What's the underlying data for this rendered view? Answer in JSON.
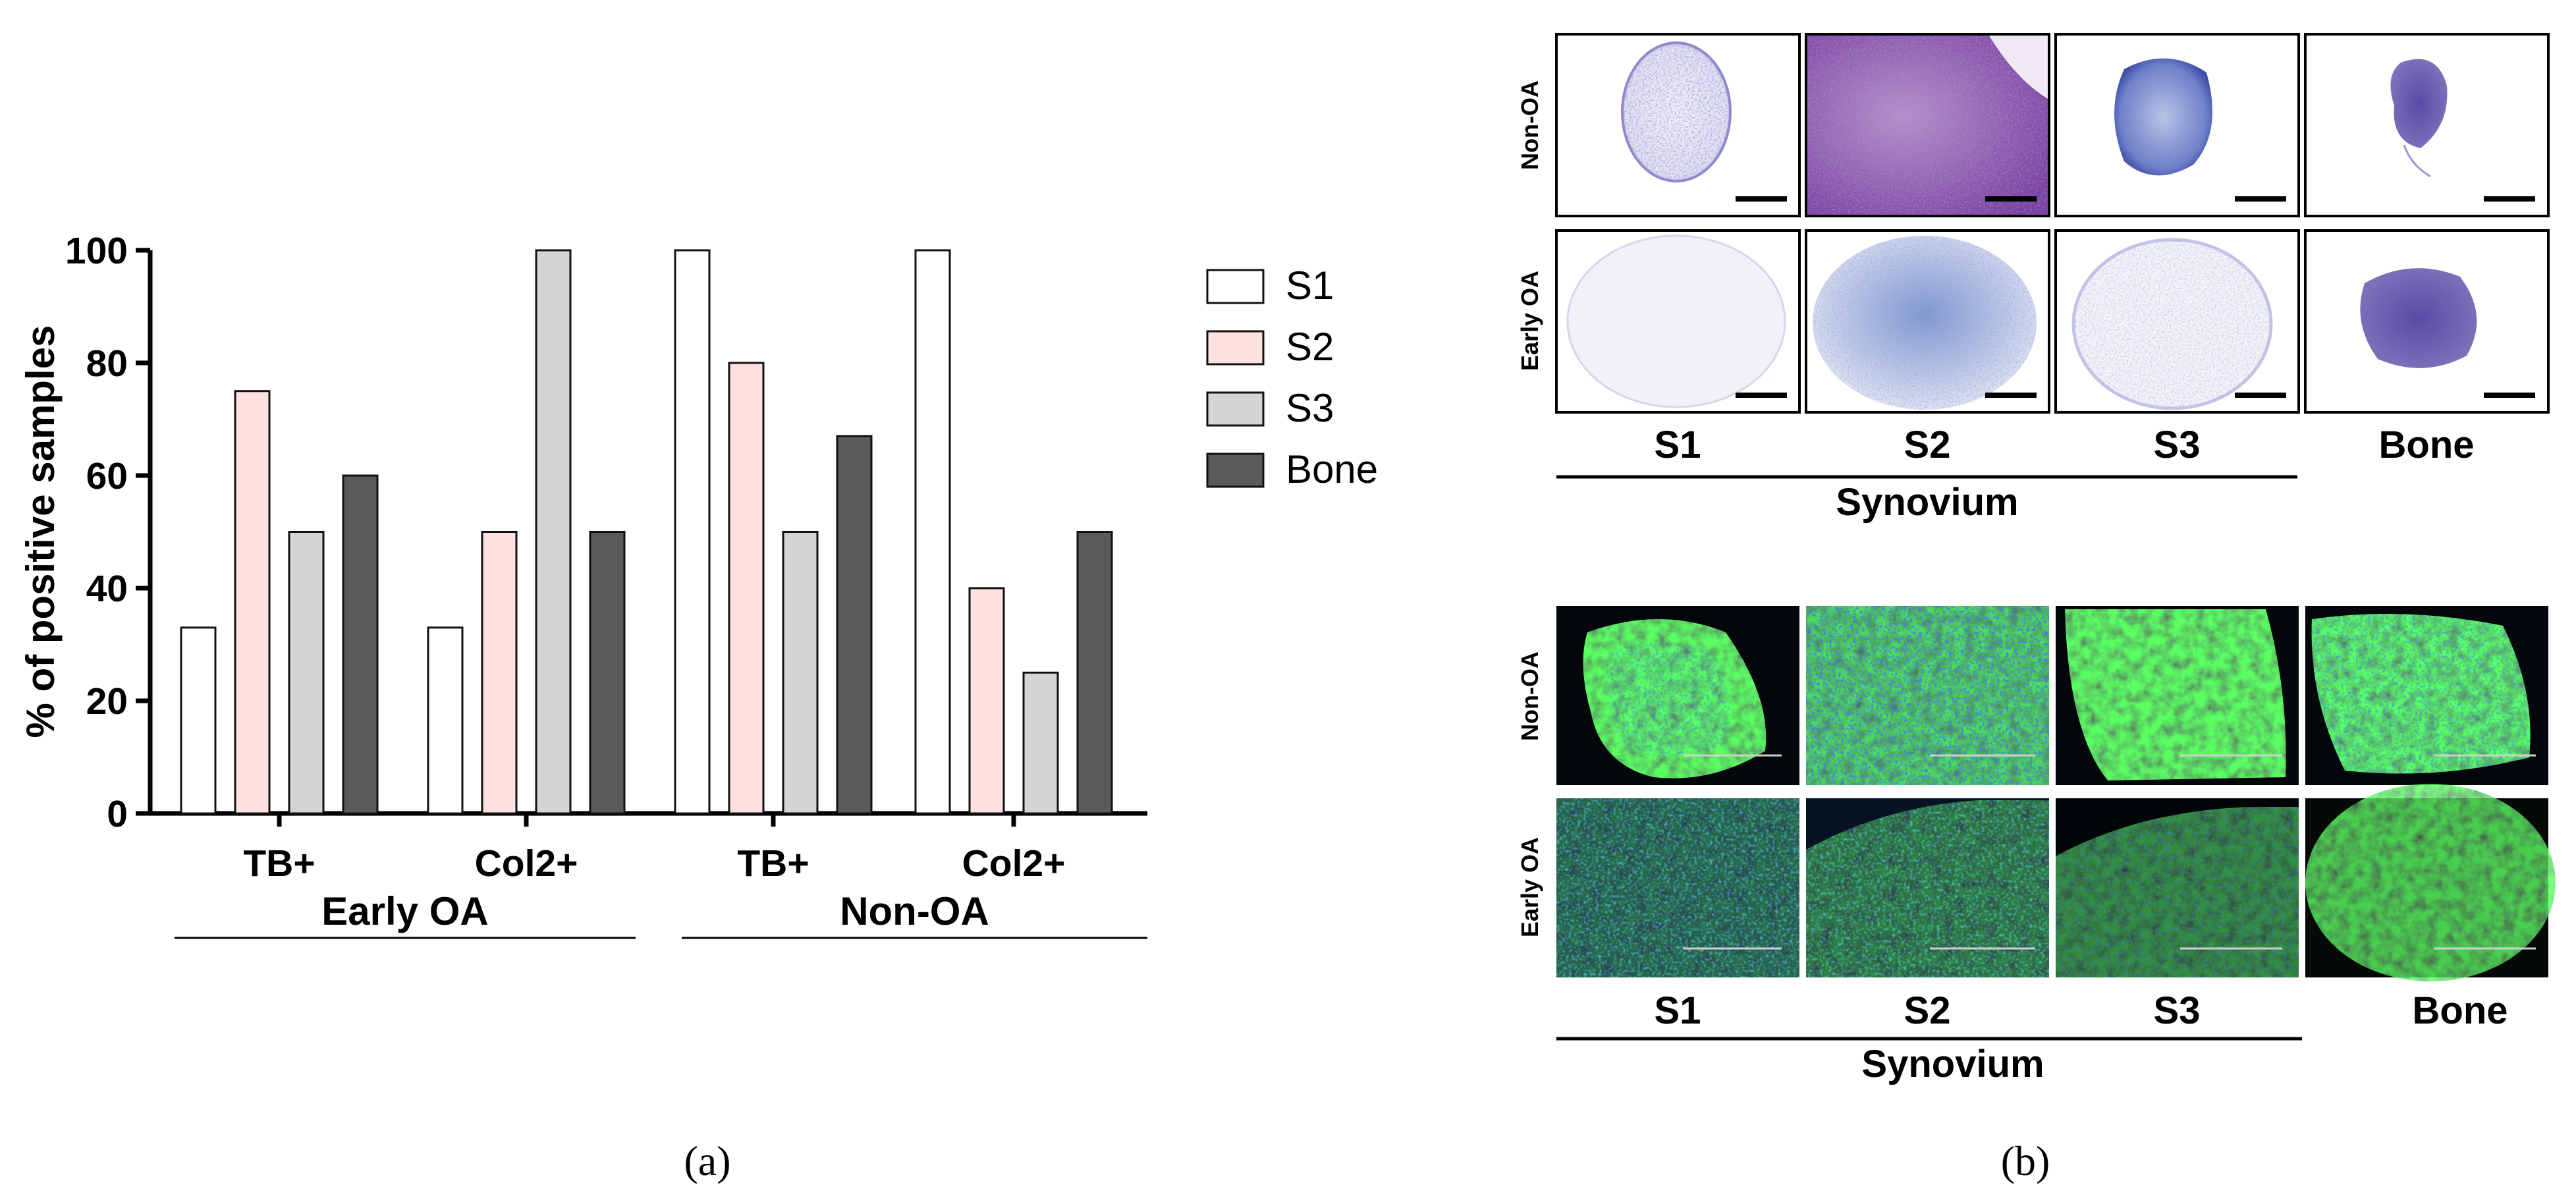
{
  "panel_a": {
    "caption": "(a)",
    "chart_data": {
      "type": "bar",
      "ylabel": "% of positive samples",
      "xlabel": "",
      "ylim": [
        0,
        100
      ],
      "yticks": [
        "0",
        "20",
        "40",
        "60",
        "80",
        "100"
      ],
      "groups": [
        {
          "label": "Early OA",
          "categories": [
            "TB+",
            "Col2+"
          ]
        },
        {
          "label": "Non-OA",
          "categories": [
            "TB+",
            "Col2+"
          ]
        }
      ],
      "categories": [
        "TB+",
        "Col2+",
        "TB+",
        "Col2+"
      ],
      "series": [
        {
          "name": "S1",
          "color": "#ffffff",
          "values": [
            33,
            33,
            100,
            100
          ]
        },
        {
          "name": "S2",
          "color": "#fde0e0",
          "values": [
            75,
            50,
            80,
            40
          ]
        },
        {
          "name": "S3",
          "color": "#d4d4d4",
          "values": [
            50,
            100,
            50,
            25
          ]
        },
        {
          "name": "Bone",
          "color": "#5a5a5a",
          "values": [
            60,
            50,
            67,
            50
          ]
        }
      ],
      "legend_position": "right"
    }
  },
  "panel_b": {
    "caption": "(b)",
    "top": {
      "rows": [
        "Non-OA",
        "Early OA"
      ],
      "columns": [
        "S1",
        "S2",
        "S3",
        "Bone"
      ],
      "group_label": "Synovium",
      "stain": "toluidine-blue-histology"
    },
    "bottom": {
      "rows": [
        "Non-OA",
        "Early OA"
      ],
      "columns": [
        "S1",
        "S2",
        "S3",
        "Bone"
      ],
      "group_label": "Synovium",
      "stain": "collagen-II-immunofluorescence"
    }
  }
}
